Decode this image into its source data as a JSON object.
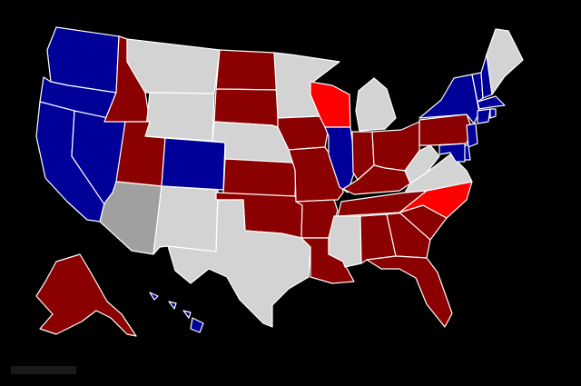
{
  "map": {
    "colors": {
      "dark_red": "#8b0000",
      "red": "#ff0000",
      "blue": "#000099",
      "gray": "#a0a0a0",
      "light_gray": "#d3d3d3"
    },
    "states": [
      {
        "code": "WA",
        "color": "blue"
      },
      {
        "code": "OR",
        "color": "blue"
      },
      {
        "code": "CA",
        "color": "blue"
      },
      {
        "code": "NV",
        "color": "blue"
      },
      {
        "code": "ID",
        "color": "dark_red"
      },
      {
        "code": "MT",
        "color": "light_gray"
      },
      {
        "code": "WY",
        "color": "light_gray"
      },
      {
        "code": "UT",
        "color": "dark_red"
      },
      {
        "code": "AZ",
        "color": "gray"
      },
      {
        "code": "CO",
        "color": "blue"
      },
      {
        "code": "NM",
        "color": "light_gray"
      },
      {
        "code": "ND",
        "color": "dark_red"
      },
      {
        "code": "SD",
        "color": "dark_red"
      },
      {
        "code": "NE",
        "color": "light_gray"
      },
      {
        "code": "KS",
        "color": "dark_red"
      },
      {
        "code": "OK",
        "color": "dark_red"
      },
      {
        "code": "TX",
        "color": "light_gray"
      },
      {
        "code": "MN",
        "color": "light_gray"
      },
      {
        "code": "IA",
        "color": "dark_red"
      },
      {
        "code": "MO",
        "color": "dark_red"
      },
      {
        "code": "AR",
        "color": "dark_red"
      },
      {
        "code": "LA",
        "color": "dark_red"
      },
      {
        "code": "WI",
        "color": "red"
      },
      {
        "code": "IL",
        "color": "blue"
      },
      {
        "code": "MI",
        "color": "light_gray"
      },
      {
        "code": "IN",
        "color": "dark_red"
      },
      {
        "code": "OH",
        "color": "dark_red"
      },
      {
        "code": "KY",
        "color": "dark_red"
      },
      {
        "code": "TN",
        "color": "dark_red"
      },
      {
        "code": "MS",
        "color": "light_gray"
      },
      {
        "code": "AL",
        "color": "dark_red"
      },
      {
        "code": "GA",
        "color": "dark_red"
      },
      {
        "code": "FL",
        "color": "dark_red"
      },
      {
        "code": "SC",
        "color": "dark_red"
      },
      {
        "code": "NC",
        "color": "red"
      },
      {
        "code": "VA",
        "color": "light_gray"
      },
      {
        "code": "WV",
        "color": "light_gray"
      },
      {
        "code": "PA",
        "color": "dark_red"
      },
      {
        "code": "NY",
        "color": "blue"
      },
      {
        "code": "VT",
        "color": "blue"
      },
      {
        "code": "NH",
        "color": "blue"
      },
      {
        "code": "ME",
        "color": "light_gray"
      },
      {
        "code": "MA",
        "color": "blue"
      },
      {
        "code": "CT",
        "color": "blue"
      },
      {
        "code": "RI",
        "color": "blue"
      },
      {
        "code": "NJ",
        "color": "blue"
      },
      {
        "code": "DE",
        "color": "blue"
      },
      {
        "code": "MD",
        "color": "blue"
      },
      {
        "code": "AK",
        "color": "dark_red"
      },
      {
        "code": "HI",
        "color": "blue"
      }
    ]
  },
  "credit": {
    "text": ""
  }
}
